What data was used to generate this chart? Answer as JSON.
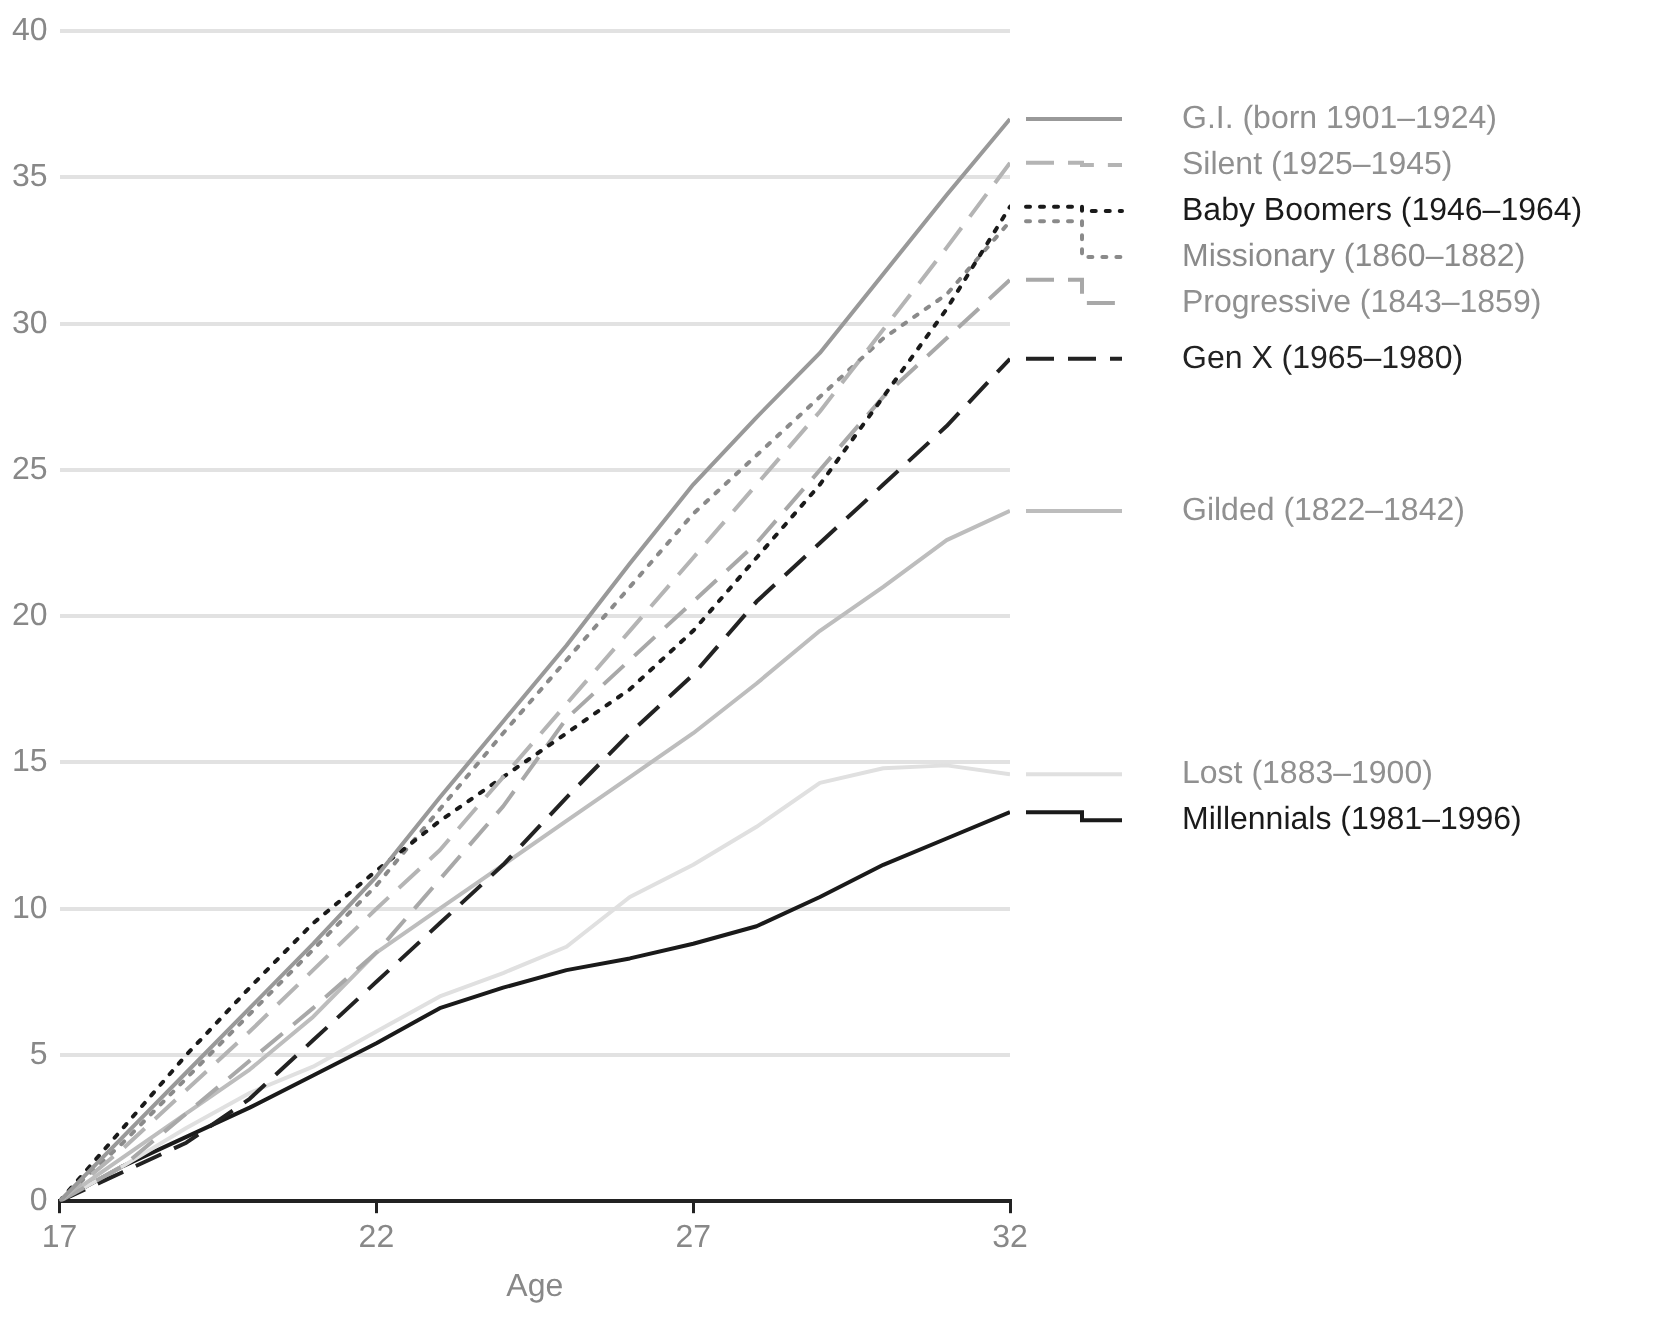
{
  "chart_data": {
    "type": "line",
    "xlabel": "Age",
    "x": [
      17,
      18,
      19,
      20,
      21,
      22,
      23,
      24,
      25,
      26,
      27,
      28,
      29,
      30,
      31,
      32
    ],
    "xlim": [
      17,
      32
    ],
    "xticks": [
      17,
      22,
      27,
      32
    ],
    "ylim": [
      0,
      40
    ],
    "yticks": [
      0,
      5,
      10,
      15,
      20,
      25,
      30,
      35,
      40
    ],
    "grid": "y",
    "legend": "right",
    "marker": "none",
    "series": [
      {
        "name": "G.I. (born 1901–1924)",
        "color": "#999999",
        "line_style": "solid",
        "values": [
          0,
          2.2,
          4.4,
          6.6,
          8.8,
          11.1,
          13.8,
          16.4,
          19,
          21.8,
          24.5,
          26.8,
          29,
          31.7,
          34.4,
          37
        ]
      },
      {
        "name": "Silent (1925–1945)",
        "color": "#b4b4b4",
        "line_style": "dashed",
        "values": [
          0,
          1.8,
          3.8,
          5.8,
          7.9,
          10,
          12,
          14.5,
          17,
          19.5,
          22,
          24.5,
          27,
          29.8,
          32.6,
          35.5
        ]
      },
      {
        "name": "Baby Boomers (1946–1964)",
        "color": "#1a1a1a",
        "line_style": "dotted",
        "values": [
          0,
          2.5,
          5,
          7.3,
          9.5,
          11.3,
          13,
          14.5,
          16,
          17.5,
          19.5,
          22,
          24.5,
          27.5,
          30.5,
          34
        ]
      },
      {
        "name": "Missionary (1860–1882)",
        "color": "#8a8a8a",
        "line_style": "dotted",
        "values": [
          0,
          2,
          4.2,
          6.4,
          8.6,
          10.8,
          13.4,
          16,
          18.5,
          21,
          23.5,
          25.5,
          27.5,
          29.5,
          31,
          33.5
        ]
      },
      {
        "name": "Progressive (1843–1859)",
        "color": "#a8a8a8",
        "line_style": "dashed",
        "values": [
          0,
          1.2,
          3,
          4.8,
          6.6,
          8.5,
          11,
          13.5,
          16.5,
          18.5,
          20.5,
          22.5,
          25,
          27.5,
          29.5,
          31.5
        ]
      },
      {
        "name": "Gen X (1965–1980)",
        "color": "#222222",
        "line_style": "dashed",
        "values": [
          0,
          1,
          2,
          3.5,
          5.5,
          7.5,
          9.5,
          11.5,
          13.8,
          16,
          18,
          20.5,
          22.5,
          24.5,
          26.5,
          28.8
        ]
      },
      {
        "name": "Gilded (1822–1842)",
        "color": "#bdbdbd",
        "line_style": "solid",
        "values": [
          0,
          1.5,
          3,
          4.5,
          6.3,
          8.5,
          10,
          11.5,
          13,
          14.5,
          16,
          17.7,
          19.5,
          21,
          22.6,
          23.6
        ]
      },
      {
        "name": "Lost (1883–1900)",
        "color": "#e0e0e0",
        "line_style": "solid",
        "values": [
          0,
          1.2,
          2.5,
          3.7,
          4.6,
          5.8,
          7,
          7.8,
          8.7,
          10.4,
          11.5,
          12.8,
          14.3,
          14.8,
          14.9,
          14.6
        ]
      },
      {
        "name": "Millennials (1981–1996)",
        "color": "#1a1a1a",
        "line_style": "solid",
        "values": [
          0,
          1.2,
          2.2,
          3.2,
          4.3,
          5.4,
          6.6,
          7.3,
          7.9,
          8.3,
          8.8,
          9.4,
          10.4,
          11.5,
          12.4,
          13.3
        ]
      }
    ]
  }
}
